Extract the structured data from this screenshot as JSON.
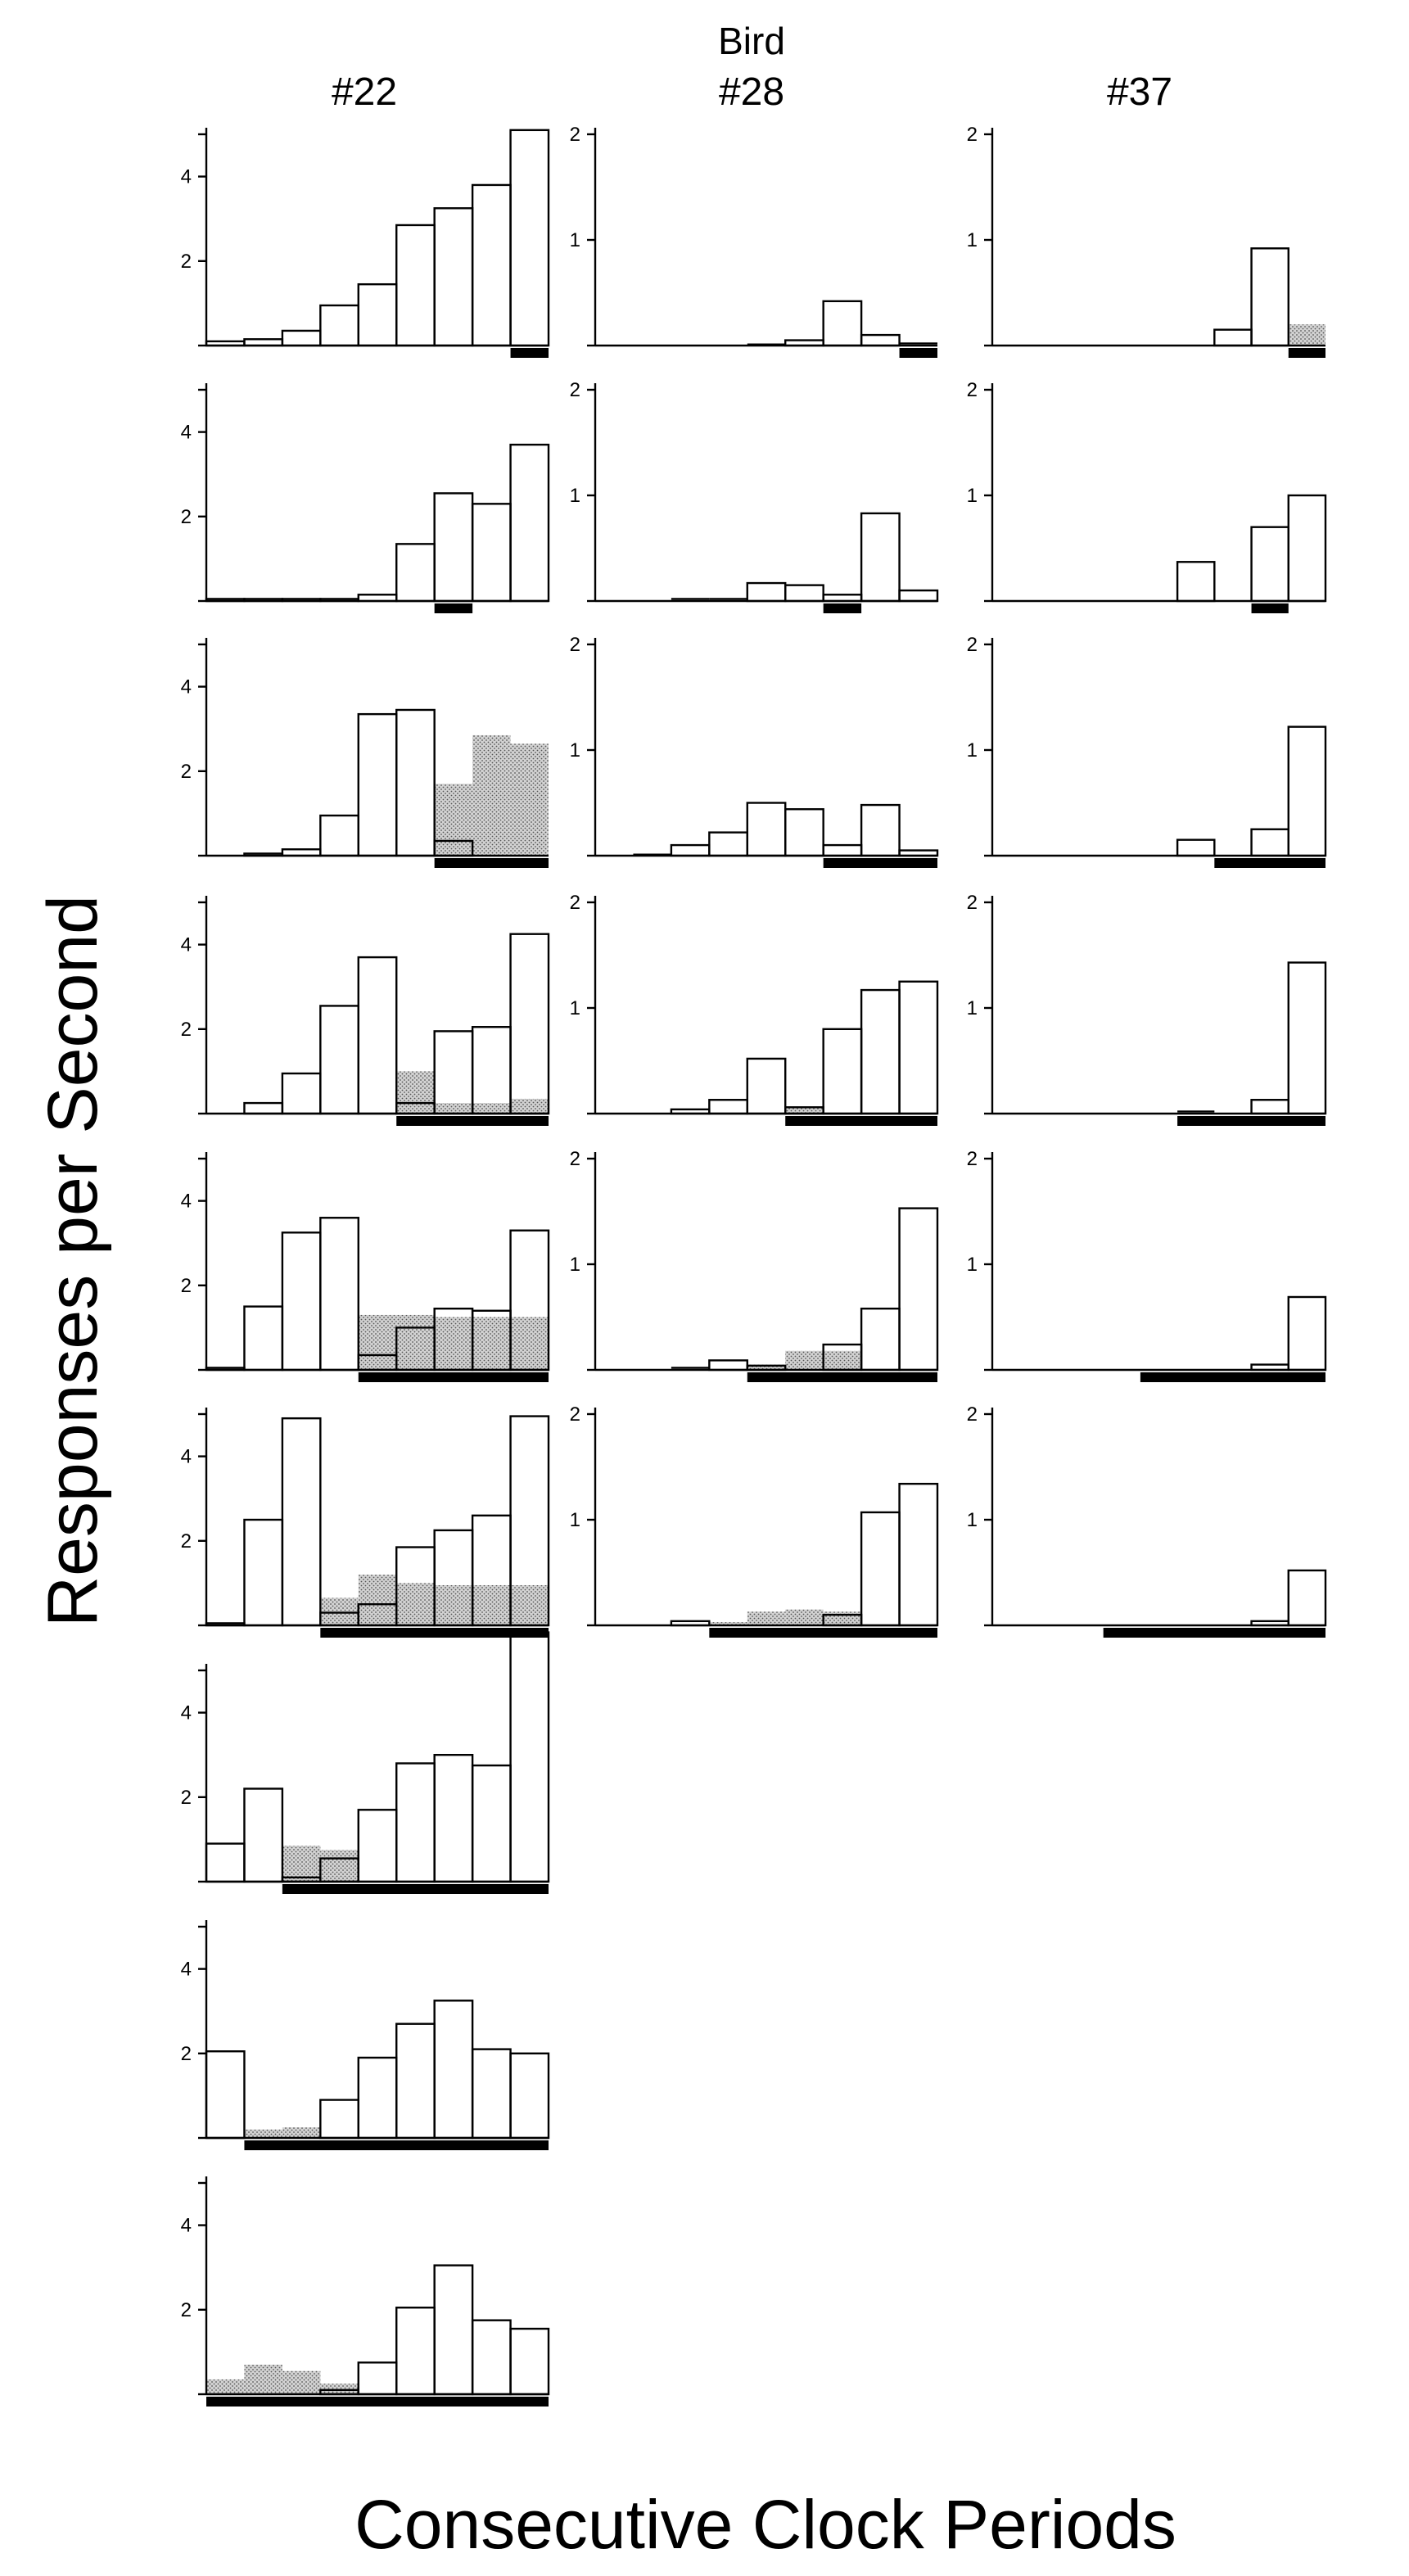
{
  "figure": {
    "bird_label": "Bird",
    "ylabel": "Responses per Second",
    "xlabel": "Consecutive Clock Periods"
  },
  "colors": {
    "ink": "#000000",
    "shade": "#c8c8c8",
    "background": "#ffffff"
  },
  "chart_data": [
    {
      "type": "bar",
      "name": "#22",
      "ylim": [
        0,
        5
      ],
      "yticks": [
        "2",
        "4"
      ],
      "bins": 9,
      "panels": [
        {
          "open": [
            0.1,
            0.15,
            0.35,
            0.95,
            1.45,
            2.85,
            3.25,
            3.8,
            5.1
          ],
          "shaded": [],
          "bar": [
            8.0,
            9.0
          ]
        },
        {
          "open": [
            0.05,
            0.05,
            0.05,
            0.05,
            0.15,
            1.35,
            2.55,
            2.3,
            3.7
          ],
          "shaded": [],
          "bar": [
            6.0,
            7.0
          ]
        },
        {
          "open": [
            0.0,
            0.05,
            0.15,
            0.95,
            3.35,
            3.45,
            0.35,
            0.0,
            0.0
          ],
          "shaded": [
            0,
            0,
            0,
            0,
            0,
            0,
            1.7,
            2.85,
            2.65
          ],
          "bar": [
            6.0,
            9.0
          ]
        },
        {
          "open": [
            0.0,
            0.25,
            0.95,
            2.55,
            3.7,
            0.25,
            1.95,
            2.05,
            4.25
          ],
          "shaded": [
            0,
            0,
            0,
            0,
            0,
            1.0,
            0.25,
            0.25,
            0.35
          ],
          "bar": [
            5.0,
            9.0
          ]
        },
        {
          "open": [
            0.05,
            1.5,
            3.25,
            3.6,
            0.35,
            1.0,
            1.45,
            1.4,
            3.3
          ],
          "shaded": [
            0,
            0,
            0,
            0,
            1.3,
            1.3,
            1.25,
            1.25,
            1.25
          ],
          "bar": [
            4.0,
            9.0
          ]
        },
        {
          "open": [
            0.05,
            2.5,
            4.9,
            0.3,
            0.5,
            1.85,
            2.25,
            2.6,
            4.95
          ],
          "shaded": [
            0,
            0,
            0,
            0.65,
            1.2,
            1.0,
            0.95,
            0.95,
            0.95
          ],
          "bar": [
            3.0,
            9.0
          ]
        },
        {
          "open": [
            0.9,
            2.2,
            0.1,
            0.55,
            1.7,
            2.8,
            3.0,
            2.75,
            5.9
          ],
          "shaded": [
            0,
            0,
            0.85,
            0.75,
            0,
            0,
            0,
            0,
            0
          ],
          "bar": [
            2.0,
            9.0
          ]
        },
        {
          "open": [
            2.05,
            0.0,
            0.0,
            0.9,
            1.9,
            2.7,
            3.25,
            2.1,
            2.0
          ],
          "shaded": [
            0,
            0.2,
            0.25,
            0,
            0,
            0,
            0,
            0,
            0
          ],
          "bar": [
            1.0,
            9.0
          ]
        },
        {
          "open": [
            0.0,
            0.0,
            0.0,
            0.1,
            0.75,
            2.05,
            3.05,
            1.75,
            1.55
          ],
          "shaded": [
            0.35,
            0.7,
            0.55,
            0.25,
            0,
            0,
            0,
            0,
            0
          ],
          "bar": [
            0.0,
            9.0
          ]
        }
      ]
    },
    {
      "type": "bar",
      "name": "#28",
      "ylim": [
        0,
        2
      ],
      "yticks": [
        "1",
        "2"
      ],
      "bins": 9,
      "panels": [
        {
          "open": [
            0,
            0,
            0,
            0,
            0.01,
            0.05,
            0.42,
            0.1,
            0.02
          ],
          "shaded": [],
          "bar": [
            8.0,
            9.0
          ]
        },
        {
          "open": [
            0,
            0,
            0.02,
            0.02,
            0.17,
            0.15,
            0.06,
            0.83,
            0.1
          ],
          "shaded": [],
          "bar": [
            6.0,
            7.0
          ]
        },
        {
          "open": [
            0,
            0.01,
            0.1,
            0.22,
            0.5,
            0.44,
            0.1,
            0.48,
            0.05
          ],
          "shaded": [
            0,
            0,
            0,
            0,
            0,
            0,
            0,
            0,
            0
          ],
          "bar": [
            6.0,
            9.0
          ]
        },
        {
          "open": [
            0,
            0,
            0.04,
            0.13,
            0.52,
            0.06,
            0.8,
            1.17,
            1.25
          ],
          "shaded": [
            0,
            0,
            0,
            0,
            0,
            0.06,
            0,
            0,
            0
          ],
          "bar": [
            5.0,
            9.0
          ]
        },
        {
          "open": [
            0,
            0,
            0.02,
            0.09,
            0.04,
            0.0,
            0.24,
            0.58,
            1.53
          ],
          "shaded": [
            0,
            0,
            0,
            0,
            0.05,
            0.18,
            0.18,
            0,
            0
          ],
          "bar": [
            4.0,
            9.0
          ]
        },
        {
          "open": [
            0,
            0,
            0.04,
            0.0,
            0.0,
            0.0,
            0.1,
            1.07,
            1.34
          ],
          "shaded": [
            0,
            0,
            0,
            0.03,
            0.13,
            0.15,
            0.13,
            0,
            0
          ],
          "bar": [
            3.0,
            9.0
          ]
        }
      ]
    },
    {
      "type": "bar",
      "name": "#37",
      "ylim": [
        0,
        2
      ],
      "yticks": [
        "1",
        "2"
      ],
      "bins": 9,
      "panels": [
        {
          "open": [
            0,
            0,
            0,
            0,
            0,
            0,
            0.15,
            0.92,
            0.0
          ],
          "shaded": [
            0,
            0,
            0,
            0,
            0,
            0,
            0,
            0,
            0.2
          ],
          "bar": [
            8.0,
            9.0
          ]
        },
        {
          "open": [
            0,
            0,
            0,
            0,
            0,
            0.37,
            0.0,
            0.7,
            1.0
          ],
          "shaded": [],
          "bar": [
            7.0,
            8.0
          ]
        },
        {
          "open": [
            0,
            0,
            0,
            0,
            0,
            0.15,
            0.0,
            0.25,
            1.22
          ],
          "shaded": [],
          "bar": [
            6.0,
            9.0
          ]
        },
        {
          "open": [
            0,
            0,
            0,
            0,
            0,
            0.02,
            0.0,
            0.13,
            1.43
          ],
          "shaded": [],
          "bar": [
            5.0,
            9.0
          ]
        },
        {
          "open": [
            0,
            0,
            0,
            0,
            0,
            0,
            0.0,
            0.05,
            0.69
          ],
          "shaded": [],
          "bar": [
            4.0,
            9.0
          ]
        },
        {
          "open": [
            0,
            0,
            0,
            0,
            0,
            0,
            0.0,
            0.04,
            0.52
          ],
          "shaded": [],
          "bar": [
            3.0,
            9.0
          ]
        }
      ]
    }
  ]
}
